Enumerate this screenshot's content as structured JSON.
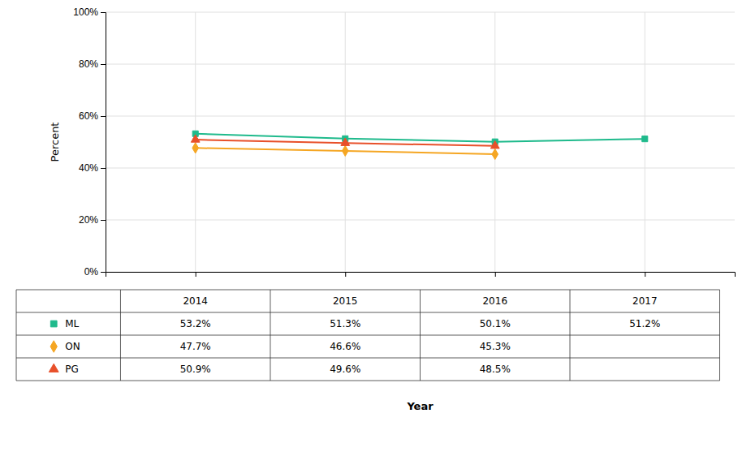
{
  "chart_data": {
    "type": "line",
    "x_label": "Year",
    "y_label": "Percent",
    "x": [
      2014,
      2015,
      2016,
      2017
    ],
    "xlim": [
      2013.4,
      2017.6
    ],
    "xticks": [
      2014,
      2015,
      2016,
      2017
    ],
    "ylim": [
      0,
      100
    ],
    "yticks": [
      {
        "value": 0,
        "label": "0%"
      },
      {
        "value": 20,
        "label": "20%"
      },
      {
        "value": 40,
        "label": "40%"
      },
      {
        "value": 60,
        "label": "60%"
      },
      {
        "value": 80,
        "label": "80%"
      },
      {
        "value": 100,
        "label": "100%"
      }
    ],
    "grid": true,
    "tick_labels": "y",
    "data_labels": true,
    "series": [
      {
        "name": "ML",
        "color": "#1fba8c",
        "marker": "square",
        "values": [
          53.2,
          51.3,
          50.1,
          51.2
        ],
        "errors": [
          0.6,
          0.6,
          0.6,
          0.6
        ],
        "value_labels": [
          "53.2%",
          "51.3%",
          "50.1%",
          "51.2%"
        ]
      },
      {
        "name": "ON",
        "color": "#f5a623",
        "marker": "diamond",
        "values": [
          47.7,
          46.6,
          45.3,
          null
        ],
        "errors": [
          0.4,
          0.4,
          0.4,
          null
        ],
        "value_labels": [
          "47.7%",
          "46.6%",
          "45.3%",
          null
        ]
      },
      {
        "name": "PG",
        "color": "#e8502a",
        "marker": "triangle",
        "values": [
          50.9,
          49.6,
          48.5,
          null
        ],
        "errors": [
          0.5,
          0.5,
          0.5,
          null
        ],
        "value_labels": [
          "50.9%",
          "49.6%",
          "48.5%",
          null
        ]
      }
    ]
  }
}
